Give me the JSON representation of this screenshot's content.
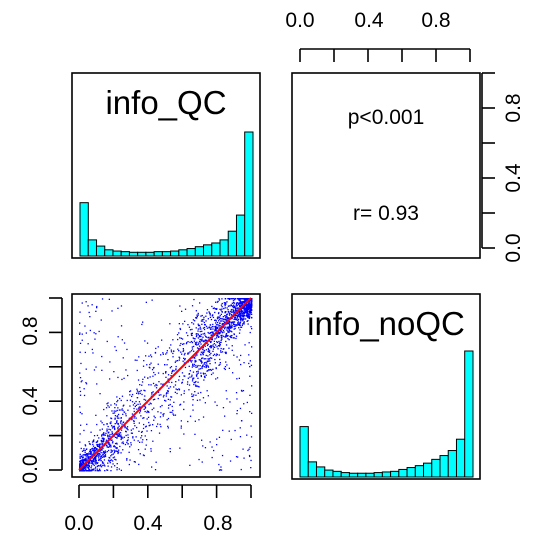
{
  "chart_data": {
    "type": "scatter",
    "variables": [
      "info_QC",
      "info_noQC"
    ],
    "axis_range": [
      0,
      1
    ],
    "tick_labels": [
      "0.0",
      "0.4",
      "0.8"
    ],
    "tick_values": [
      0.0,
      0.2,
      0.4,
      0.6,
      0.8,
      1.0
    ],
    "histograms": {
      "bins": [
        0.0,
        0.05,
        0.1,
        0.15,
        0.2,
        0.25,
        0.3,
        0.35,
        0.4,
        0.45,
        0.5,
        0.55,
        0.6,
        0.65,
        0.7,
        0.75,
        0.8,
        0.85,
        0.9,
        0.95,
        1.0
      ],
      "info_QC": [
        0.43,
        0.13,
        0.08,
        0.05,
        0.04,
        0.035,
        0.03,
        0.03,
        0.03,
        0.035,
        0.035,
        0.04,
        0.05,
        0.06,
        0.075,
        0.09,
        0.105,
        0.13,
        0.2,
        0.33,
        1.0
      ],
      "info_noQC": [
        0.4,
        0.12,
        0.08,
        0.055,
        0.045,
        0.035,
        0.03,
        0.03,
        0.03,
        0.035,
        0.04,
        0.045,
        0.06,
        0.075,
        0.09,
        0.11,
        0.14,
        0.17,
        0.21,
        0.3,
        1.0
      ],
      "color": "#00ffff"
    },
    "correlation": {
      "p_label": "p<0.001",
      "r_label": "r= 0.93"
    },
    "scatter": {
      "x_variable": "info_QC",
      "y_variable": "info_noQC",
      "point_color": "#0000ff",
      "fit_line_color": "#ff0000",
      "fit_line": [
        [
          0,
          0
        ],
        [
          1,
          1
        ]
      ]
    }
  }
}
